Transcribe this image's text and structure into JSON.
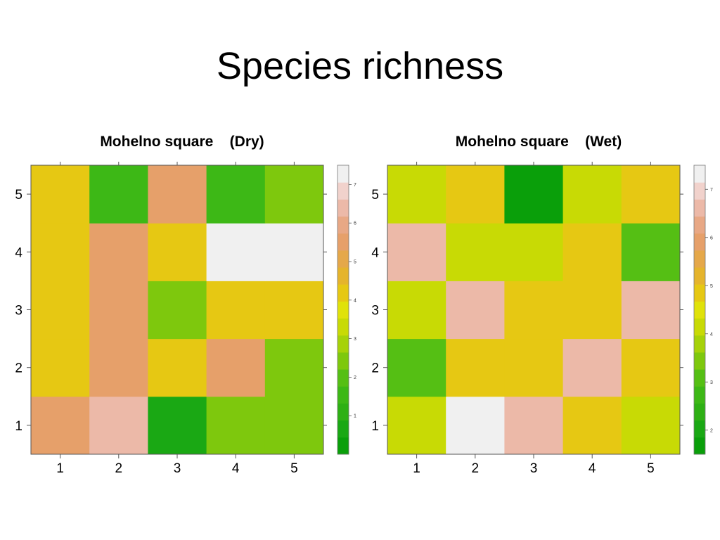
{
  "slide_title": "Species richness",
  "chart_data": [
    {
      "type": "heatmap",
      "title": "Mohelno square    (Dry)",
      "x_categories": [
        "1",
        "2",
        "3",
        "4",
        "5"
      ],
      "y_categories": [
        "1",
        "2",
        "3",
        "4",
        "5"
      ],
      "values": [
        [
          5.5,
          6.5,
          0.5,
          2.5,
          2.5
        ],
        [
          4,
          5.5,
          4,
          5.5,
          2.5
        ],
        [
          4,
          5.5,
          2.5,
          4,
          4
        ],
        [
          4,
          5.5,
          4,
          7.5,
          7.5
        ],
        [
          4,
          1.5,
          5.5,
          1.5,
          2.5
        ]
      ],
      "colorbar": {
        "min": 0,
        "max": 7.5,
        "ticks": [
          "1",
          "2",
          "3",
          "4",
          "5",
          "6",
          "7"
        ],
        "tick_values": [
          1,
          2,
          3,
          4,
          5,
          6,
          7
        ]
      },
      "grid": false
    },
    {
      "type": "heatmap",
      "title": "Mohelno square    (Wet)",
      "x_categories": [
        "1",
        "2",
        "3",
        "4",
        "5"
      ],
      "y_categories": [
        "1",
        "2",
        "3",
        "4",
        "5"
      ],
      "values": [
        [
          4,
          7.5,
          6.5,
          5,
          4
        ],
        [
          3,
          5,
          5,
          6.5,
          5
        ],
        [
          4,
          6.5,
          5,
          5,
          6.5
        ],
        [
          6.5,
          4,
          4,
          5,
          3
        ],
        [
          4,
          5,
          1.5,
          4,
          5
        ]
      ],
      "colorbar": {
        "min": 1.5,
        "max": 7.5,
        "ticks": [
          "2",
          "3",
          "4",
          "5",
          "6",
          "7"
        ],
        "tick_values": [
          2,
          3,
          4,
          5,
          6,
          7
        ]
      },
      "grid": false
    }
  ],
  "palette": [
    "#0a9f0a",
    "#1aa814",
    "#2eb014",
    "#3db816",
    "#55bf14",
    "#7ec80d",
    "#a6d209",
    "#c8da05",
    "#e0e20a",
    "#e6c813",
    "#e5b42c",
    "#e5a84a",
    "#e6a06a",
    "#e8a885",
    "#ecb9a8",
    "#f1d2cc",
    "#f0f0f0"
  ]
}
